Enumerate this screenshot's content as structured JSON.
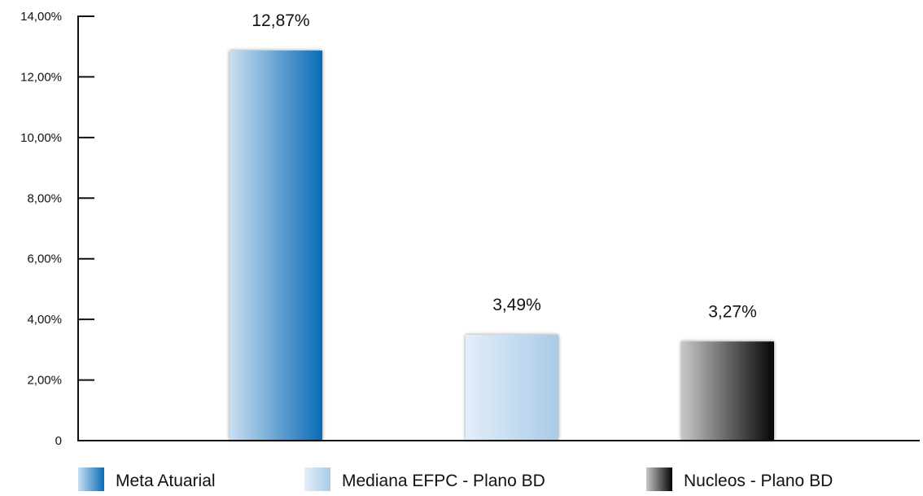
{
  "chart_data": {
    "type": "bar",
    "title": "",
    "xlabel": "",
    "ylabel": "",
    "categories": [
      "Meta Atuarial",
      "Mediana EFPC - Plano BD",
      "Nucleos - Plano BD"
    ],
    "values": [
      12.87,
      3.49,
      3.27
    ],
    "value_labels": [
      "12,87%",
      "3,49%",
      "3,27%"
    ],
    "ylim": [
      0,
      14
    ],
    "yticks": [
      0,
      2,
      4,
      6,
      8,
      10,
      12,
      14
    ],
    "ytick_labels": [
      "0",
      "2,00%",
      "4,00%",
      "6,00%",
      "8,00%",
      "10,00%",
      "12,00%",
      "14,00%"
    ],
    "grid": false,
    "legend": {
      "position": "bottom",
      "entries": [
        "Meta Atuarial",
        "Mediana EFPC - Plano BD",
        "Nucleos - Plano BD"
      ]
    },
    "colors": {
      "meta_atuarial": [
        "#c9dff0",
        "#0a6bb6"
      ],
      "mediana_efpc": [
        "#e3eef8",
        "#a9cbe8"
      ],
      "nucleos": [
        "#c8c8c8",
        "#050505"
      ]
    }
  }
}
